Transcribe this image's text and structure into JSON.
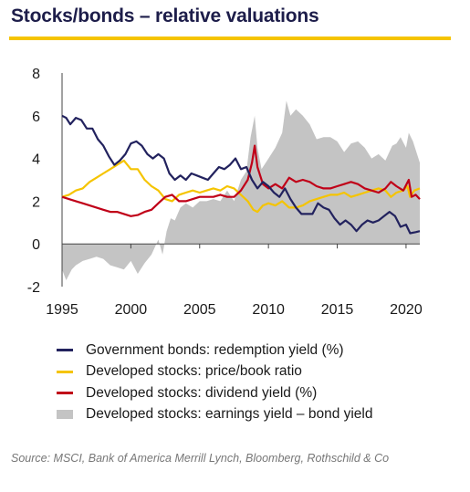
{
  "header": {
    "title": "Stocks/bonds – relative valuations"
  },
  "chart_data": {
    "type": "line",
    "title": "Stocks/bonds – relative valuations",
    "xlabel": "",
    "ylabel": "",
    "xlim": [
      1995,
      2021
    ],
    "ylim": [
      -2,
      8
    ],
    "x_ticks": [
      "1995",
      "2000",
      "2005",
      "2010",
      "2015",
      "2020"
    ],
    "y_ticks": [
      "8",
      "6",
      "4",
      "2",
      "0",
      "-2"
    ],
    "grid": false,
    "legend_position": "bottom",
    "series": [
      {
        "name": "Government bonds: redemption yield (%)",
        "kind": "line",
        "color": "#22225e",
        "points": [
          [
            1995.0,
            6.0
          ],
          [
            1995.3,
            5.9
          ],
          [
            1995.6,
            5.6
          ],
          [
            1996.0,
            5.9
          ],
          [
            1996.4,
            5.8
          ],
          [
            1996.8,
            5.4
          ],
          [
            1997.2,
            5.4
          ],
          [
            1997.6,
            4.9
          ],
          [
            1998.0,
            4.6
          ],
          [
            1998.4,
            4.1
          ],
          [
            1998.8,
            3.7
          ],
          [
            1999.2,
            3.9
          ],
          [
            1999.6,
            4.2
          ],
          [
            2000.0,
            4.7
          ],
          [
            2000.4,
            4.8
          ],
          [
            2000.8,
            4.6
          ],
          [
            2001.2,
            4.2
          ],
          [
            2001.6,
            4.0
          ],
          [
            2002.0,
            4.2
          ],
          [
            2002.4,
            4.0
          ],
          [
            2002.8,
            3.3
          ],
          [
            2003.2,
            3.0
          ],
          [
            2003.6,
            3.2
          ],
          [
            2004.0,
            3.0
          ],
          [
            2004.4,
            3.3
          ],
          [
            2004.8,
            3.2
          ],
          [
            2005.2,
            3.1
          ],
          [
            2005.6,
            3.0
          ],
          [
            2006.0,
            3.3
          ],
          [
            2006.4,
            3.6
          ],
          [
            2006.8,
            3.5
          ],
          [
            2007.2,
            3.7
          ],
          [
            2007.6,
            4.0
          ],
          [
            2008.0,
            3.5
          ],
          [
            2008.4,
            3.6
          ],
          [
            2008.8,
            3.0
          ],
          [
            2009.2,
            2.6
          ],
          [
            2009.6,
            2.9
          ],
          [
            2010.0,
            2.7
          ],
          [
            2010.4,
            2.4
          ],
          [
            2010.8,
            2.2
          ],
          [
            2011.2,
            2.6
          ],
          [
            2011.6,
            2.1
          ],
          [
            2012.0,
            1.7
          ],
          [
            2012.4,
            1.4
          ],
          [
            2012.8,
            1.4
          ],
          [
            2013.2,
            1.4
          ],
          [
            2013.6,
            1.9
          ],
          [
            2014.0,
            1.7
          ],
          [
            2014.4,
            1.6
          ],
          [
            2014.8,
            1.2
          ],
          [
            2015.2,
            0.9
          ],
          [
            2015.6,
            1.1
          ],
          [
            2016.0,
            0.9
          ],
          [
            2016.4,
            0.6
          ],
          [
            2016.8,
            0.9
          ],
          [
            2017.2,
            1.1
          ],
          [
            2017.6,
            1.0
          ],
          [
            2018.0,
            1.1
          ],
          [
            2018.4,
            1.3
          ],
          [
            2018.8,
            1.5
          ],
          [
            2019.2,
            1.3
          ],
          [
            2019.6,
            0.8
          ],
          [
            2020.0,
            0.9
          ],
          [
            2020.3,
            0.5
          ],
          [
            2020.7,
            0.55
          ],
          [
            2021.0,
            0.6
          ]
        ]
      },
      {
        "name": "Developed stocks: price/book ratio",
        "kind": "line",
        "color": "#f5c400",
        "points": [
          [
            1995.0,
            2.2
          ],
          [
            1995.5,
            2.3
          ],
          [
            1996.0,
            2.5
          ],
          [
            1996.5,
            2.6
          ],
          [
            1997.0,
            2.9
          ],
          [
            1997.5,
            3.1
          ],
          [
            1998.0,
            3.3
          ],
          [
            1998.5,
            3.5
          ],
          [
            1999.0,
            3.7
          ],
          [
            1999.5,
            3.9
          ],
          [
            2000.0,
            3.5
          ],
          [
            2000.5,
            3.5
          ],
          [
            2001.0,
            3.0
          ],
          [
            2001.5,
            2.7
          ],
          [
            2002.0,
            2.5
          ],
          [
            2002.5,
            2.1
          ],
          [
            2003.0,
            2.0
          ],
          [
            2003.5,
            2.3
          ],
          [
            2004.0,
            2.4
          ],
          [
            2004.5,
            2.5
          ],
          [
            2005.0,
            2.4
          ],
          [
            2005.5,
            2.5
          ],
          [
            2006.0,
            2.6
          ],
          [
            2006.5,
            2.5
          ],
          [
            2007.0,
            2.7
          ],
          [
            2007.5,
            2.6
          ],
          [
            2008.0,
            2.3
          ],
          [
            2008.5,
            2.0
          ],
          [
            2008.9,
            1.6
          ],
          [
            2009.2,
            1.5
          ],
          [
            2009.6,
            1.8
          ],
          [
            2010.0,
            1.9
          ],
          [
            2010.5,
            1.8
          ],
          [
            2011.0,
            2.0
          ],
          [
            2011.5,
            1.7
          ],
          [
            2012.0,
            1.7
          ],
          [
            2012.5,
            1.8
          ],
          [
            2013.0,
            2.0
          ],
          [
            2013.5,
            2.1
          ],
          [
            2014.0,
            2.2
          ],
          [
            2014.5,
            2.3
          ],
          [
            2015.0,
            2.3
          ],
          [
            2015.5,
            2.4
          ],
          [
            2016.0,
            2.2
          ],
          [
            2016.5,
            2.3
          ],
          [
            2017.0,
            2.4
          ],
          [
            2017.5,
            2.5
          ],
          [
            2018.0,
            2.6
          ],
          [
            2018.5,
            2.5
          ],
          [
            2018.9,
            2.2
          ],
          [
            2019.3,
            2.4
          ],
          [
            2019.8,
            2.5
          ],
          [
            2020.1,
            2.7
          ],
          [
            2020.3,
            2.2
          ],
          [
            2020.6,
            2.5
          ],
          [
            2021.0,
            2.6
          ]
        ]
      },
      {
        "name": "Developed stocks: dividend yield (%)",
        "kind": "line",
        "color": "#c00018",
        "points": [
          [
            1995.0,
            2.2
          ],
          [
            1995.5,
            2.1
          ],
          [
            1996.0,
            2.0
          ],
          [
            1996.5,
            1.9
          ],
          [
            1997.0,
            1.8
          ],
          [
            1997.5,
            1.7
          ],
          [
            1998.0,
            1.6
          ],
          [
            1998.5,
            1.5
          ],
          [
            1999.0,
            1.5
          ],
          [
            1999.5,
            1.4
          ],
          [
            2000.0,
            1.3
          ],
          [
            2000.5,
            1.35
          ],
          [
            2001.0,
            1.5
          ],
          [
            2001.5,
            1.6
          ],
          [
            2002.0,
            1.9
          ],
          [
            2002.5,
            2.2
          ],
          [
            2003.0,
            2.3
          ],
          [
            2003.5,
            2.0
          ],
          [
            2004.0,
            2.0
          ],
          [
            2004.5,
            2.1
          ],
          [
            2005.0,
            2.2
          ],
          [
            2005.5,
            2.2
          ],
          [
            2006.0,
            2.2
          ],
          [
            2006.5,
            2.3
          ],
          [
            2007.0,
            2.2
          ],
          [
            2007.5,
            2.2
          ],
          [
            2008.0,
            2.5
          ],
          [
            2008.5,
            3.0
          ],
          [
            2008.8,
            3.8
          ],
          [
            2009.0,
            4.6
          ],
          [
            2009.2,
            3.6
          ],
          [
            2009.6,
            2.8
          ],
          [
            2010.0,
            2.6
          ],
          [
            2010.5,
            2.8
          ],
          [
            2011.0,
            2.6
          ],
          [
            2011.5,
            3.1
          ],
          [
            2012.0,
            2.9
          ],
          [
            2012.5,
            3.0
          ],
          [
            2013.0,
            2.9
          ],
          [
            2013.5,
            2.7
          ],
          [
            2014.0,
            2.6
          ],
          [
            2014.5,
            2.6
          ],
          [
            2015.0,
            2.7
          ],
          [
            2015.5,
            2.8
          ],
          [
            2016.0,
            2.9
          ],
          [
            2016.5,
            2.8
          ],
          [
            2017.0,
            2.6
          ],
          [
            2017.5,
            2.5
          ],
          [
            2018.0,
            2.4
          ],
          [
            2018.5,
            2.6
          ],
          [
            2018.9,
            2.9
          ],
          [
            2019.3,
            2.7
          ],
          [
            2019.8,
            2.5
          ],
          [
            2020.2,
            3.0
          ],
          [
            2020.4,
            2.2
          ],
          [
            2020.7,
            2.3
          ],
          [
            2021.0,
            2.1
          ]
        ]
      },
      {
        "name": "Developed stocks: earnings yield – bond yield",
        "kind": "area",
        "color": "#c4c4c4",
        "points": [
          [
            1995.0,
            -1.2
          ],
          [
            1995.3,
            -1.7
          ],
          [
            1995.7,
            -1.2
          ],
          [
            1996.0,
            -1.0
          ],
          [
            1996.5,
            -0.8
          ],
          [
            1997.0,
            -0.7
          ],
          [
            1997.5,
            -0.6
          ],
          [
            1998.0,
            -0.7
          ],
          [
            1998.5,
            -1.0
          ],
          [
            1999.0,
            -1.1
          ],
          [
            1999.5,
            -1.2
          ],
          [
            2000.0,
            -0.8
          ],
          [
            2000.5,
            -1.4
          ],
          [
            2001.0,
            -0.9
          ],
          [
            2001.5,
            -0.5
          ],
          [
            2002.0,
            0.2
          ],
          [
            2002.3,
            -0.5
          ],
          [
            2002.6,
            0.6
          ],
          [
            2002.9,
            1.2
          ],
          [
            2003.2,
            1.1
          ],
          [
            2003.6,
            1.7
          ],
          [
            2004.0,
            1.9
          ],
          [
            2004.5,
            1.7
          ],
          [
            2005.0,
            2.0
          ],
          [
            2005.5,
            2.0
          ],
          [
            2006.0,
            2.1
          ],
          [
            2006.5,
            2.0
          ],
          [
            2007.0,
            2.5
          ],
          [
            2007.5,
            2.0
          ],
          [
            2008.0,
            3.0
          ],
          [
            2008.4,
            3.4
          ],
          [
            2008.7,
            5.0
          ],
          [
            2009.0,
            6.0
          ],
          [
            2009.2,
            4.5
          ],
          [
            2009.5,
            3.5
          ],
          [
            2010.0,
            4.0
          ],
          [
            2010.5,
            4.5
          ],
          [
            2011.0,
            5.2
          ],
          [
            2011.3,
            6.7
          ],
          [
            2011.6,
            6.0
          ],
          [
            2012.0,
            6.3
          ],
          [
            2012.5,
            6.0
          ],
          [
            2013.0,
            5.6
          ],
          [
            2013.5,
            4.9
          ],
          [
            2014.0,
            5.0
          ],
          [
            2014.5,
            5.0
          ],
          [
            2015.0,
            4.8
          ],
          [
            2015.5,
            4.3
          ],
          [
            2016.0,
            4.7
          ],
          [
            2016.5,
            4.8
          ],
          [
            2017.0,
            4.5
          ],
          [
            2017.5,
            4.0
          ],
          [
            2018.0,
            4.2
          ],
          [
            2018.5,
            3.9
          ],
          [
            2019.0,
            4.6
          ],
          [
            2019.3,
            4.7
          ],
          [
            2019.6,
            5.0
          ],
          [
            2020.0,
            4.5
          ],
          [
            2020.2,
            5.2
          ],
          [
            2020.5,
            4.8
          ],
          [
            2020.8,
            4.2
          ],
          [
            2021.0,
            3.8
          ]
        ]
      }
    ]
  },
  "legend": [
    {
      "label": "Government bonds: redemption yield (%)",
      "color": "#22225e",
      "kind": "line"
    },
    {
      "label": "Developed stocks: price/book ratio",
      "color": "#f5c400",
      "kind": "line"
    },
    {
      "label": "Developed stocks: dividend yield (%)",
      "color": "#c00018",
      "kind": "line"
    },
    {
      "label": "Developed stocks: earnings yield – bond yield",
      "color": "#c4c4c4",
      "kind": "area"
    }
  ],
  "footer": {
    "source": "Source: MSCI, Bank of America Merrill Lynch, Bloomberg, Rothschild & Co"
  }
}
